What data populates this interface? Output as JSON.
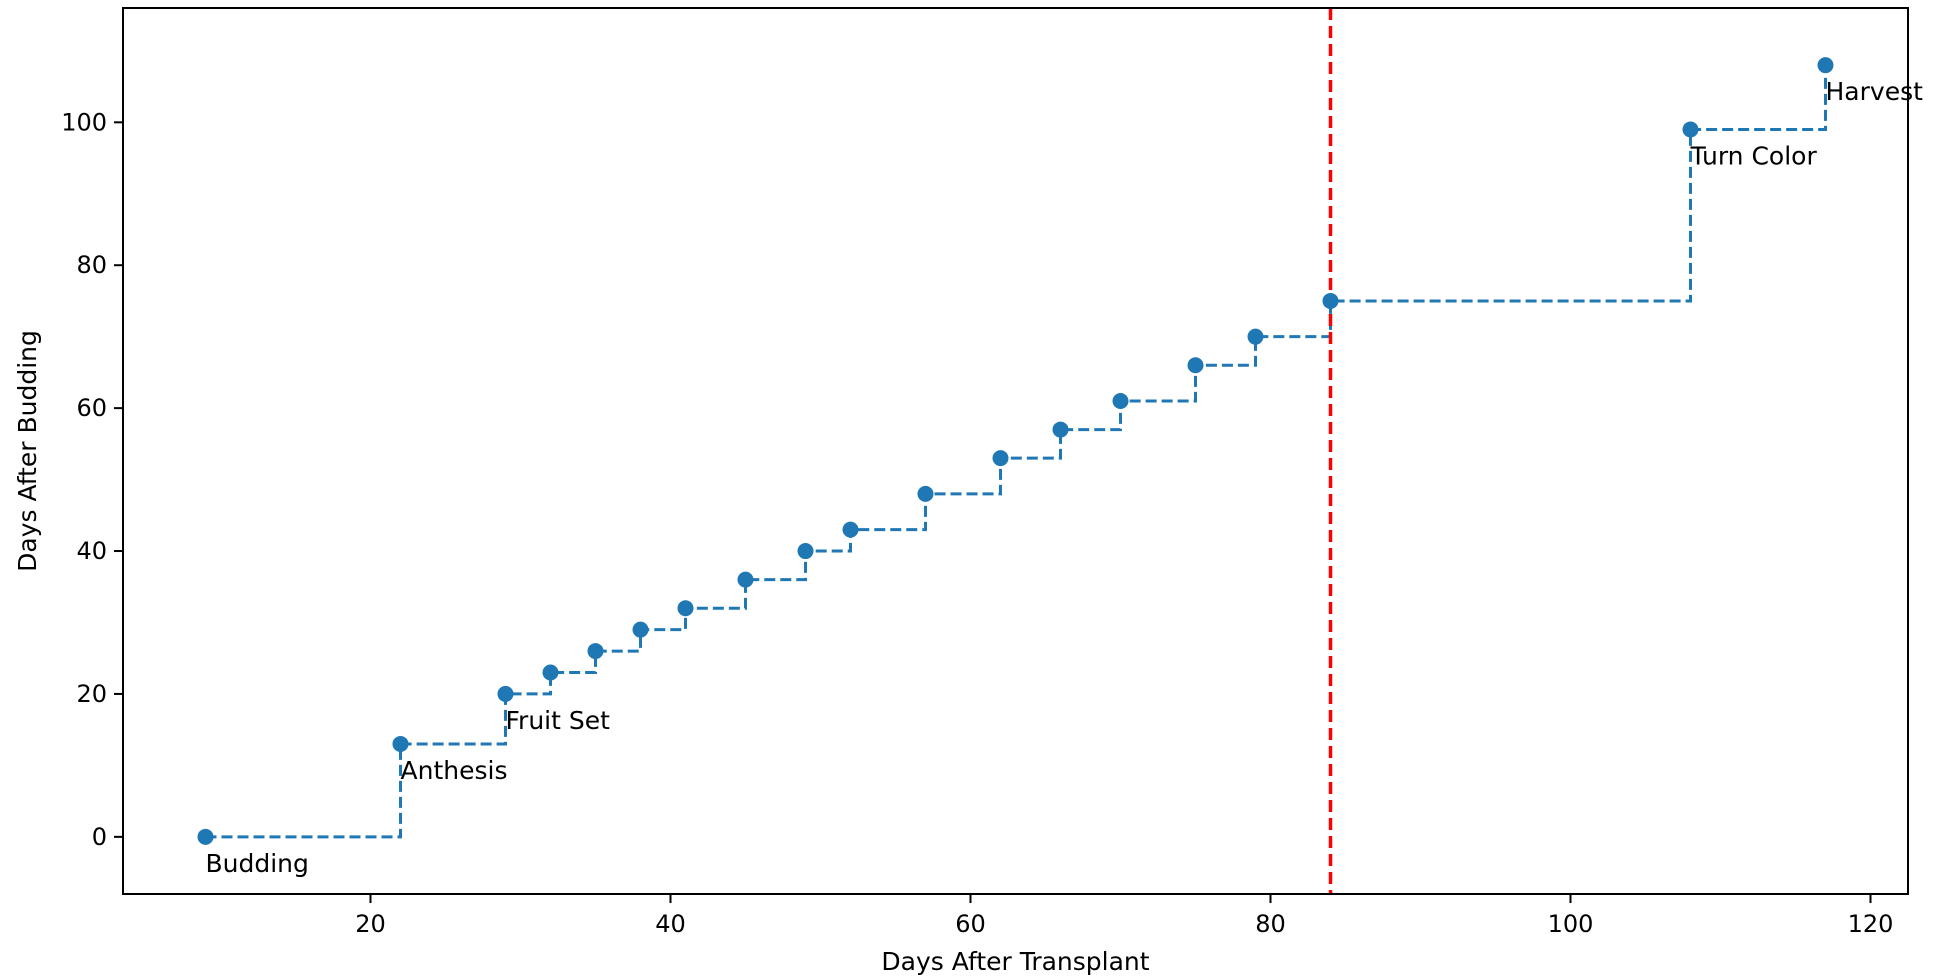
{
  "chart_data": {
    "type": "line",
    "title": "",
    "xlabel": "Days After Transplant",
    "ylabel": "Days After Budding",
    "xlim": [
      3.5,
      122.5
    ],
    "ylim": [
      -8,
      116
    ],
    "xticks": [
      20,
      40,
      60,
      80,
      100,
      120
    ],
    "yticks": [
      0,
      20,
      40,
      60,
      80,
      100
    ],
    "grid": false,
    "legend": "none",
    "step_style": "post",
    "series": [
      {
        "color": "#1f77b4",
        "x": [
          9,
          22,
          29,
          32,
          35,
          38,
          41,
          45,
          49,
          52,
          57,
          62,
          66,
          70,
          75,
          79,
          84,
          108,
          117
        ],
        "y": [
          0,
          13,
          20,
          23,
          26,
          29,
          32,
          36,
          40,
          43,
          48,
          53,
          57,
          61,
          66,
          70,
          75,
          99,
          108
        ]
      }
    ],
    "vline": {
      "x": 84,
      "color": "#ff0000"
    },
    "annotations": [
      {
        "text": "Budding",
        "x": 9,
        "y": 0
      },
      {
        "text": "Anthesis",
        "x": 22,
        "y": 13
      },
      {
        "text": "Fruit Set",
        "x": 29,
        "y": 20
      },
      {
        "text": "Turn Color",
        "x": 108,
        "y": 99
      },
      {
        "text": "Harvest",
        "x": 117,
        "y": 108
      }
    ]
  }
}
